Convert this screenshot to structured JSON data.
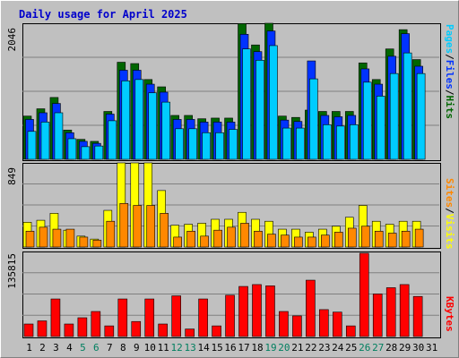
{
  "title": "Daily usage for April 2025",
  "colors": {
    "hits": "#006600",
    "files": "#0033ff",
    "pages": "#00ccff",
    "visits": "#ffff00",
    "sites": "#ff8800",
    "kbytes": "#ff0000",
    "weekend_label": "#007f5f",
    "weekday_label": "#000000",
    "grid": "#808080"
  },
  "legend": {
    "pages": "Pages",
    "files": "Files",
    "hits": "Hits",
    "sites": "Sites",
    "visits": "Visits",
    "kbytes": "KBytes",
    "sep": "/"
  },
  "chart_data": {
    "type": "bar",
    "categories": [
      "1",
      "2",
      "3",
      "4",
      "5",
      "6",
      "7",
      "8",
      "9",
      "10",
      "11",
      "12",
      "13",
      "14",
      "15",
      "16",
      "17",
      "18",
      "19",
      "20",
      "21",
      "22",
      "23",
      "24",
      "25",
      "26",
      "27",
      "28",
      "29",
      "30",
      "31"
    ],
    "weekend_days": [
      "5",
      "6",
      "12",
      "13",
      "19",
      "20",
      "26",
      "27"
    ],
    "panels": [
      {
        "id": "hits",
        "ymax_label": "2046",
        "ylim": [
          0,
          2046
        ],
        "series": [
          {
            "name": "Hits",
            "values": [
              650,
              760,
              930,
              440,
              300,
              270,
              720,
              1460,
              1440,
              1200,
              1090,
              660,
              660,
              610,
              620,
              620,
              2040,
              1720,
              2050,
              650,
              630,
              740,
              720,
              720,
              720,
              1450,
              1200,
              1660,
              1950,
              1500,
              null
            ]
          },
          {
            "name": "Files",
            "values": [
              600,
              700,
              840,
              400,
              270,
              240,
              680,
              1340,
              1340,
              1130,
              1010,
              600,
              600,
              560,
              560,
              560,
              1880,
              1620,
              1930,
              590,
              570,
              1480,
              660,
              640,
              660,
              1360,
              1130,
              1550,
              1890,
              1400,
              null
            ]
          },
          {
            "name": "Pages",
            "values": [
              420,
              560,
              700,
              310,
              190,
              200,
              580,
              1180,
              1200,
              1000,
              860,
              460,
              460,
              400,
              400,
              450,
              1660,
              1490,
              1710,
              470,
              470,
              1210,
              520,
              500,
              520,
              1160,
              950,
              1290,
              1600,
              1290,
              null
            ]
          }
        ]
      },
      {
        "id": "visits",
        "ymax_label": "849",
        "ylim": [
          0,
          849
        ],
        "series": [
          {
            "name": "Visits",
            "values": [
              250,
              270,
              340,
              170,
              110,
              80,
              370,
              849,
              849,
              849,
              570,
              220,
              230,
              240,
              280,
              280,
              350,
              280,
              260,
              180,
              180,
              150,
              180,
              210,
              300,
              420,
              260,
              230,
              260,
              260,
              null
            ]
          },
          {
            "name": "Sites",
            "values": [
              160,
              200,
              180,
              180,
              100,
              70,
              260,
              440,
              420,
              420,
              340,
              100,
              160,
              110,
              170,
              200,
              240,
              160,
              130,
              120,
              100,
              100,
              120,
              150,
              190,
              210,
              160,
              140,
              160,
              180,
              null
            ]
          }
        ]
      },
      {
        "id": "kbytes",
        "ymax_label": "135815",
        "ylim": [
          0,
          135815
        ],
        "series": [
          {
            "name": "KBytes",
            "values": [
              20000,
              25000,
              60000,
              20000,
              30000,
              40000,
              17000,
              60000,
              24000,
              60000,
              20000,
              65000,
              12000,
              60000,
              17000,
              66000,
              80000,
              83000,
              81000,
              40000,
              33000,
              90000,
              43000,
              39000,
              17000,
              133000,
              68000,
              78000,
              83000,
              64000,
              null
            ]
          }
        ]
      }
    ]
  }
}
